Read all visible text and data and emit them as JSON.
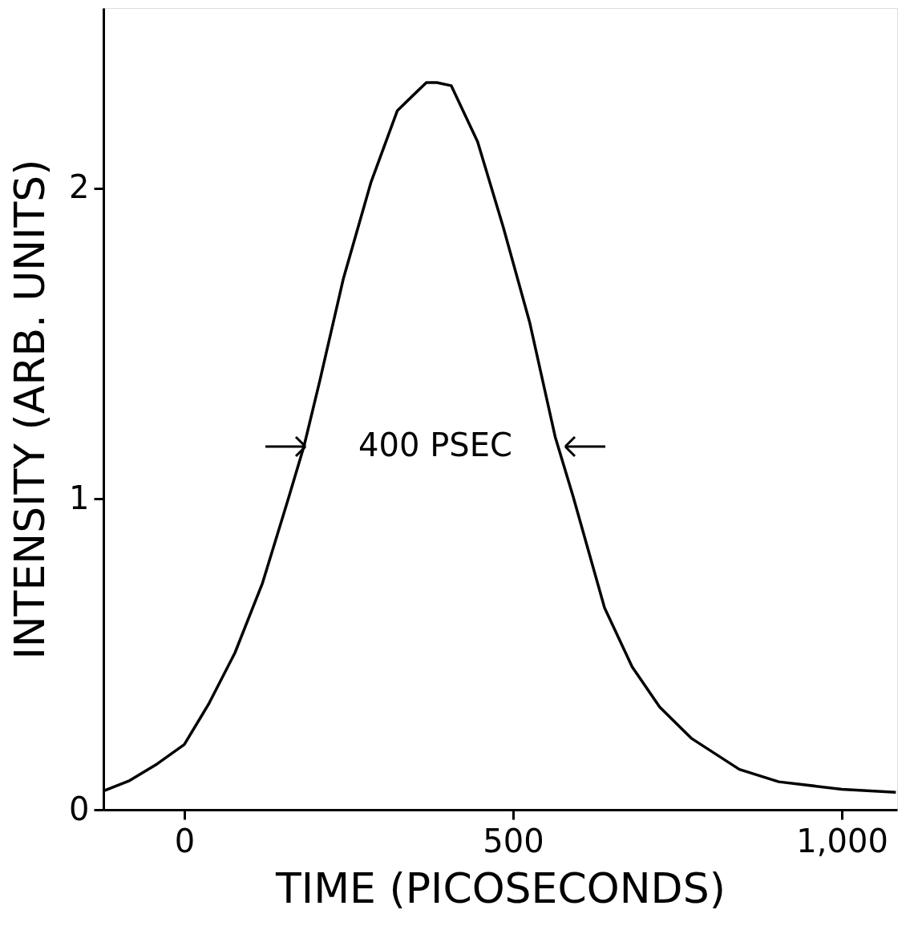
{
  "chart_data": {
    "type": "line",
    "xlabel": "TIME  (PICOSECONDS)",
    "ylabel": "INTENSITY (ARB. UNITS)",
    "x": [
      -123,
      -83,
      -41,
      0,
      37,
      77,
      119,
      158,
      182,
      206,
      242,
      284,
      324,
      368,
      384,
      406,
      446,
      485,
      525,
      564,
      591,
      639,
      681,
      723,
      771,
      844,
      904,
      1000,
      1082
    ],
    "series": [
      {
        "color": "#000000",
        "values": [
          0.06,
          0.094,
          0.148,
          0.21,
          0.34,
          0.505,
          0.73,
          1.0,
          1.17,
          1.38,
          1.71,
          2.02,
          2.25,
          2.34,
          2.34,
          2.33,
          2.15,
          1.875,
          1.57,
          1.2,
          1.01,
          0.65,
          0.46,
          0.33,
          0.23,
          0.13,
          0.09,
          0.066,
          0.056
        ]
      }
    ],
    "xlim": [
      -123,
      1084
    ],
    "xticks": [
      0,
      500,
      {
        "value": 1000,
        "label": "1,000"
      }
    ],
    "ylim": [
      0,
      2.58
    ],
    "yticks": [
      0,
      1,
      2
    ],
    "annotations": [
      "400 PSEC"
    ],
    "grid": false,
    "marker": "none",
    "line_style": "solid"
  }
}
